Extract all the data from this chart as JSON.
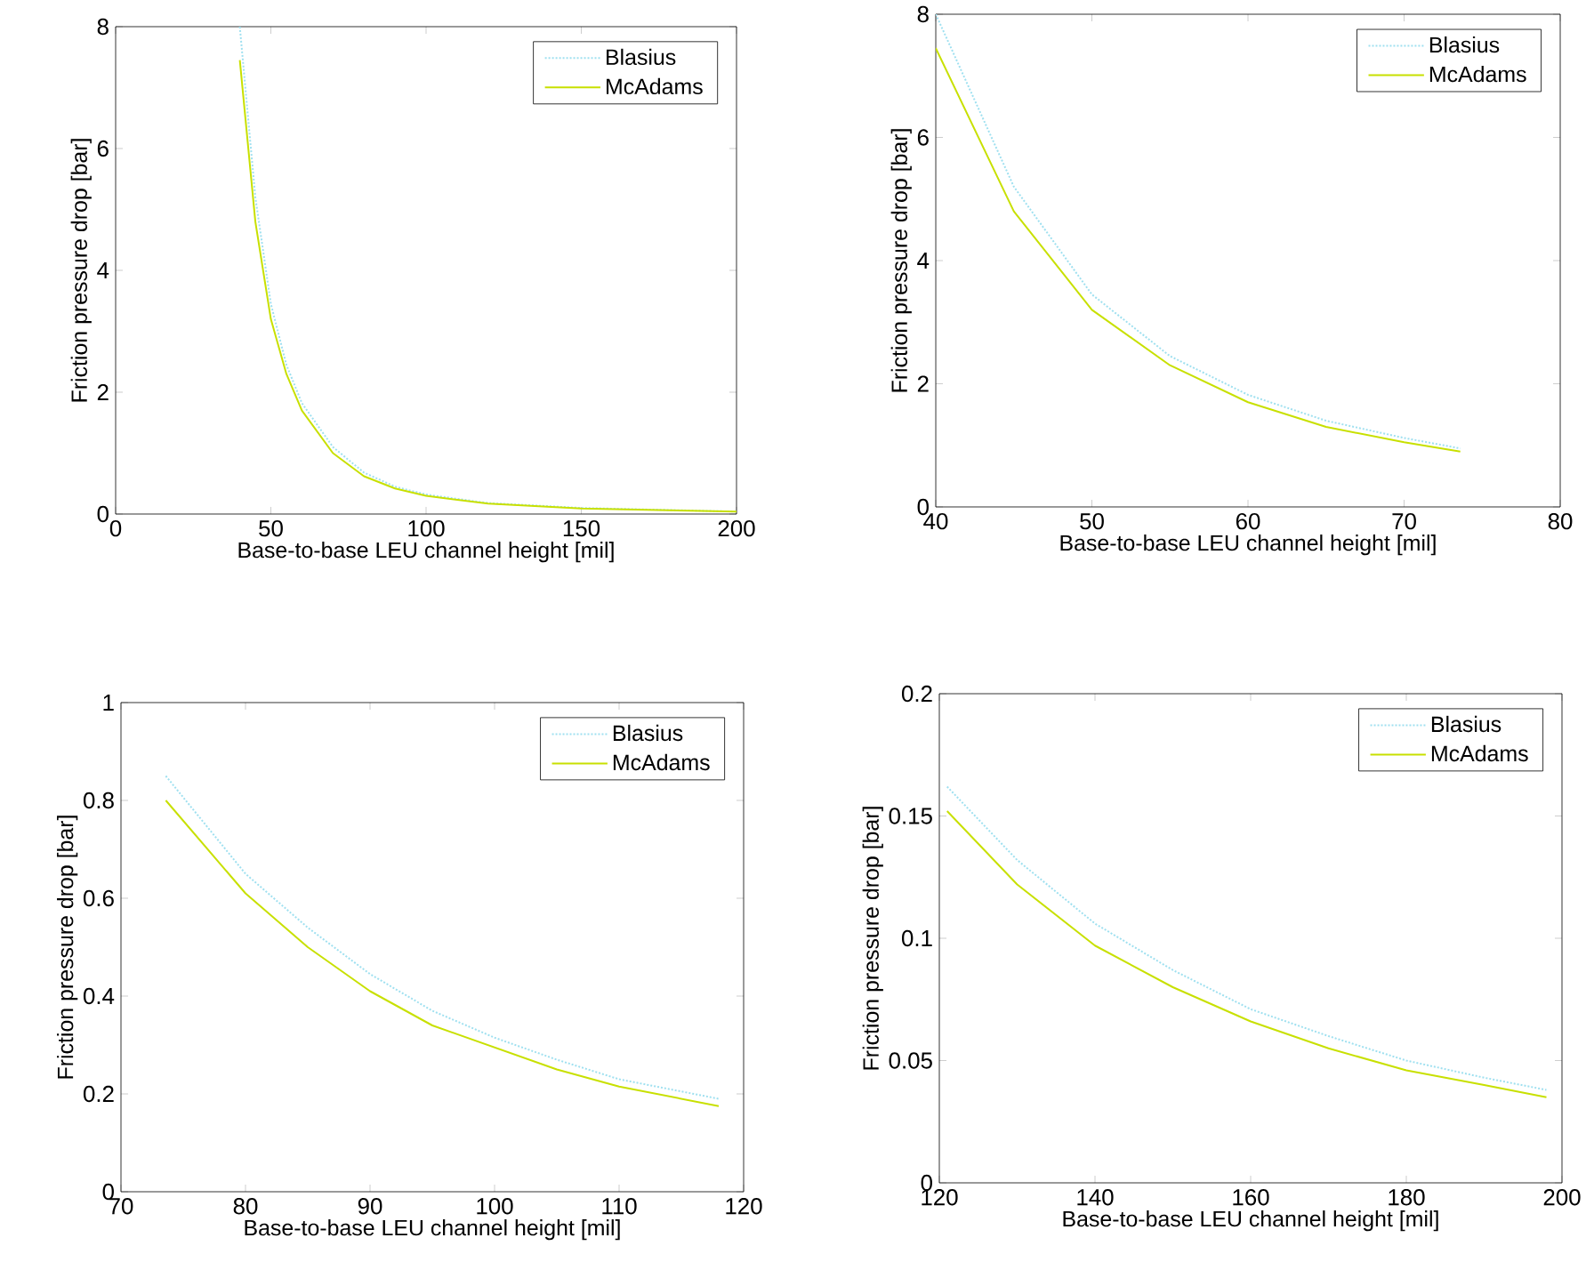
{
  "chart_data": [
    {
      "type": "line",
      "xlabel": "Base-to-base LEU channel height [mil]",
      "ylabel": "Friction pressure drop [bar]",
      "xlim": [
        0,
        200
      ],
      "ylim": [
        0,
        8
      ],
      "xticks": [
        0,
        50,
        100,
        150,
        200
      ],
      "yticks": [
        0,
        2,
        4,
        6,
        8
      ],
      "legend": "top right",
      "grid": false,
      "marker": "none",
      "series": [
        {
          "name": "Blasius",
          "color": "#9fe0f0",
          "line_style": "dotted",
          "x": [
            40,
            45,
            50,
            55,
            60,
            70,
            80,
            90,
            100,
            120,
            150,
            200
          ],
          "values": [
            8.0,
            5.2,
            3.45,
            2.45,
            1.82,
            1.1,
            0.68,
            0.45,
            0.32,
            0.18,
            0.1,
            0.04
          ]
        },
        {
          "name": "McAdams",
          "color": "#c8e000",
          "line_style": "solid",
          "x": [
            40,
            45,
            50,
            55,
            60,
            70,
            80,
            90,
            100,
            120,
            150,
            200
          ],
          "values": [
            7.45,
            4.8,
            3.2,
            2.3,
            1.7,
            1.0,
            0.62,
            0.42,
            0.3,
            0.17,
            0.09,
            0.04
          ]
        }
      ]
    },
    {
      "type": "line",
      "xlabel": "Base-to-base LEU channel height [mil]",
      "ylabel": "Friction pressure drop [bar]",
      "xlim": [
        40,
        80
      ],
      "ylim": [
        0,
        8
      ],
      "xticks": [
        40,
        50,
        60,
        70,
        80
      ],
      "yticks": [
        0,
        2,
        4,
        6,
        8
      ],
      "legend": "top right",
      "grid": false,
      "marker": "none",
      "series": [
        {
          "name": "Blasius",
          "color": "#9fe0f0",
          "line_style": "dotted",
          "x": [
            40,
            45,
            50,
            55,
            60,
            65,
            70,
            73.6
          ],
          "values": [
            8.0,
            5.2,
            3.45,
            2.45,
            1.82,
            1.4,
            1.12,
            0.95
          ]
        },
        {
          "name": "McAdams",
          "color": "#c8e000",
          "line_style": "solid",
          "x": [
            40,
            45,
            50,
            55,
            60,
            65,
            70,
            73.6
          ],
          "values": [
            7.45,
            4.8,
            3.2,
            2.3,
            1.7,
            1.3,
            1.05,
            0.9
          ]
        }
      ]
    },
    {
      "type": "line",
      "xlabel": "Base-to-base LEU channel height [mil]",
      "ylabel": "Friction pressure drop [bar]",
      "xlim": [
        70,
        120
      ],
      "ylim": [
        0,
        1
      ],
      "xticks": [
        70,
        80,
        90,
        100,
        110,
        120
      ],
      "yticks": [
        0,
        0.2,
        0.4,
        0.6,
        0.8,
        1
      ],
      "legend": "top right",
      "grid": false,
      "marker": "none",
      "series": [
        {
          "name": "Blasius",
          "color": "#9fe0f0",
          "line_style": "dotted",
          "x": [
            73.6,
            80,
            85,
            90,
            95,
            100,
            105,
            110,
            118
          ],
          "values": [
            0.85,
            0.65,
            0.54,
            0.445,
            0.37,
            0.315,
            0.27,
            0.23,
            0.19
          ]
        },
        {
          "name": "McAdams",
          "color": "#c8e000",
          "line_style": "solid",
          "x": [
            73.6,
            80,
            85,
            90,
            95,
            100,
            105,
            110,
            118
          ],
          "values": [
            0.8,
            0.61,
            0.5,
            0.41,
            0.34,
            0.295,
            0.25,
            0.215,
            0.175
          ]
        }
      ]
    },
    {
      "type": "line",
      "xlabel": "Base-to-base LEU channel height [mil]",
      "ylabel": "Friction pressure drop [bar]",
      "xlim": [
        120,
        200
      ],
      "ylim": [
        0,
        0.2
      ],
      "xticks": [
        120,
        140,
        160,
        180,
        200
      ],
      "yticks": [
        0,
        0.05,
        0.1,
        0.15,
        0.2
      ],
      "legend": "top right",
      "grid": false,
      "marker": "none",
      "series": [
        {
          "name": "Blasius",
          "color": "#9fe0f0",
          "line_style": "dotted",
          "x": [
            121,
            130,
            140,
            150,
            160,
            170,
            180,
            190,
            198
          ],
          "values": [
            0.162,
            0.132,
            0.106,
            0.087,
            0.071,
            0.06,
            0.05,
            0.043,
            0.038
          ]
        },
        {
          "name": "McAdams",
          "color": "#c8e000",
          "line_style": "solid",
          "x": [
            121,
            130,
            140,
            150,
            160,
            170,
            180,
            190,
            198
          ],
          "values": [
            0.152,
            0.122,
            0.097,
            0.08,
            0.066,
            0.055,
            0.046,
            0.04,
            0.035
          ]
        }
      ]
    }
  ]
}
